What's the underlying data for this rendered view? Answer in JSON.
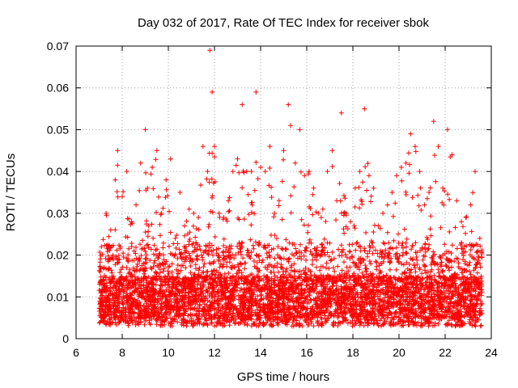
{
  "chart_data": {
    "type": "scatter",
    "title": "Day 032 of 2017, Rate Of TEC Index for receiver sbok",
    "xlabel": "GPS time / hours",
    "ylabel": "ROTI / TECUs",
    "xlim": [
      6,
      24
    ],
    "ylim": [
      0,
      0.07
    ],
    "x_ticks": [
      6,
      8,
      10,
      12,
      14,
      16,
      18,
      20,
      22,
      24
    ],
    "y_ticks": [
      0,
      0.01,
      0.02,
      0.03,
      0.04,
      0.05,
      0.06,
      0.07
    ],
    "x_tick_labels": [
      "6",
      "8",
      "10",
      "12",
      "14",
      "16",
      "18",
      "20",
      "22",
      "24"
    ],
    "y_tick_labels": [
      "0",
      "0.01",
      "0.02",
      "0.03",
      "0.04",
      "0.05",
      "0.06",
      "0.07"
    ],
    "grid": true,
    "legend": "none",
    "marker": "plus",
    "series_color": "#ff0000",
    "data_range_x": [
      7.0,
      23.6
    ],
    "series": [
      {
        "x": [
          7.1,
          7.3,
          7.5,
          7.7,
          7.8,
          8.0,
          8.2,
          8.4,
          8.6,
          8.8,
          9.0,
          9.1,
          9.3,
          9.5,
          9.7,
          9.9,
          10.1,
          10.3,
          10.5,
          10.7,
          10.9,
          11.1,
          11.3,
          11.5,
          11.7,
          11.8,
          11.9,
          12.0,
          12.2,
          12.4,
          12.6,
          12.8,
          13.0,
          13.2,
          13.4,
          13.6,
          13.8,
          14.0,
          14.2,
          14.4,
          14.6,
          14.8,
          15.0,
          15.2,
          15.3,
          15.5,
          15.7,
          15.9,
          16.1,
          16.3,
          16.5,
          16.7,
          16.9,
          17.1,
          17.3,
          17.5,
          17.7,
          17.9,
          18.1,
          18.3,
          18.5,
          18.7,
          18.9,
          19.1,
          19.3,
          19.5,
          19.7,
          19.9,
          20.1,
          20.3,
          20.5,
          20.7,
          20.9,
          21.1,
          21.3,
          21.5,
          21.7,
          21.9,
          22.1,
          22.3,
          22.5,
          22.7,
          22.9,
          23.1,
          23.3,
          23.5
        ],
        "y": [
          0.022,
          0.03,
          0.026,
          0.038,
          0.045,
          0.034,
          0.04,
          0.028,
          0.032,
          0.042,
          0.05,
          0.036,
          0.041,
          0.045,
          0.03,
          0.038,
          0.043,
          0.024,
          0.035,
          0.027,
          0.031,
          0.03,
          0.029,
          0.046,
          0.04,
          0.069,
          0.059,
          0.046,
          0.03,
          0.029,
          0.033,
          0.04,
          0.043,
          0.056,
          0.04,
          0.04,
          0.059,
          0.041,
          0.04,
          0.046,
          0.03,
          0.033,
          0.045,
          0.056,
          0.051,
          0.042,
          0.05,
          0.039,
          0.04,
          0.036,
          0.03,
          0.031,
          0.04,
          0.045,
          0.033,
          0.054,
          0.03,
          0.028,
          0.036,
          0.04,
          0.055,
          0.039,
          0.036,
          0.027,
          0.03,
          0.032,
          0.035,
          0.039,
          0.041,
          0.042,
          0.049,
          0.046,
          0.04,
          0.032,
          0.035,
          0.052,
          0.046,
          0.036,
          0.05,
          0.044,
          0.033,
          0.028,
          0.029,
          0.032,
          0.04,
          0.024
        ]
      }
    ]
  }
}
